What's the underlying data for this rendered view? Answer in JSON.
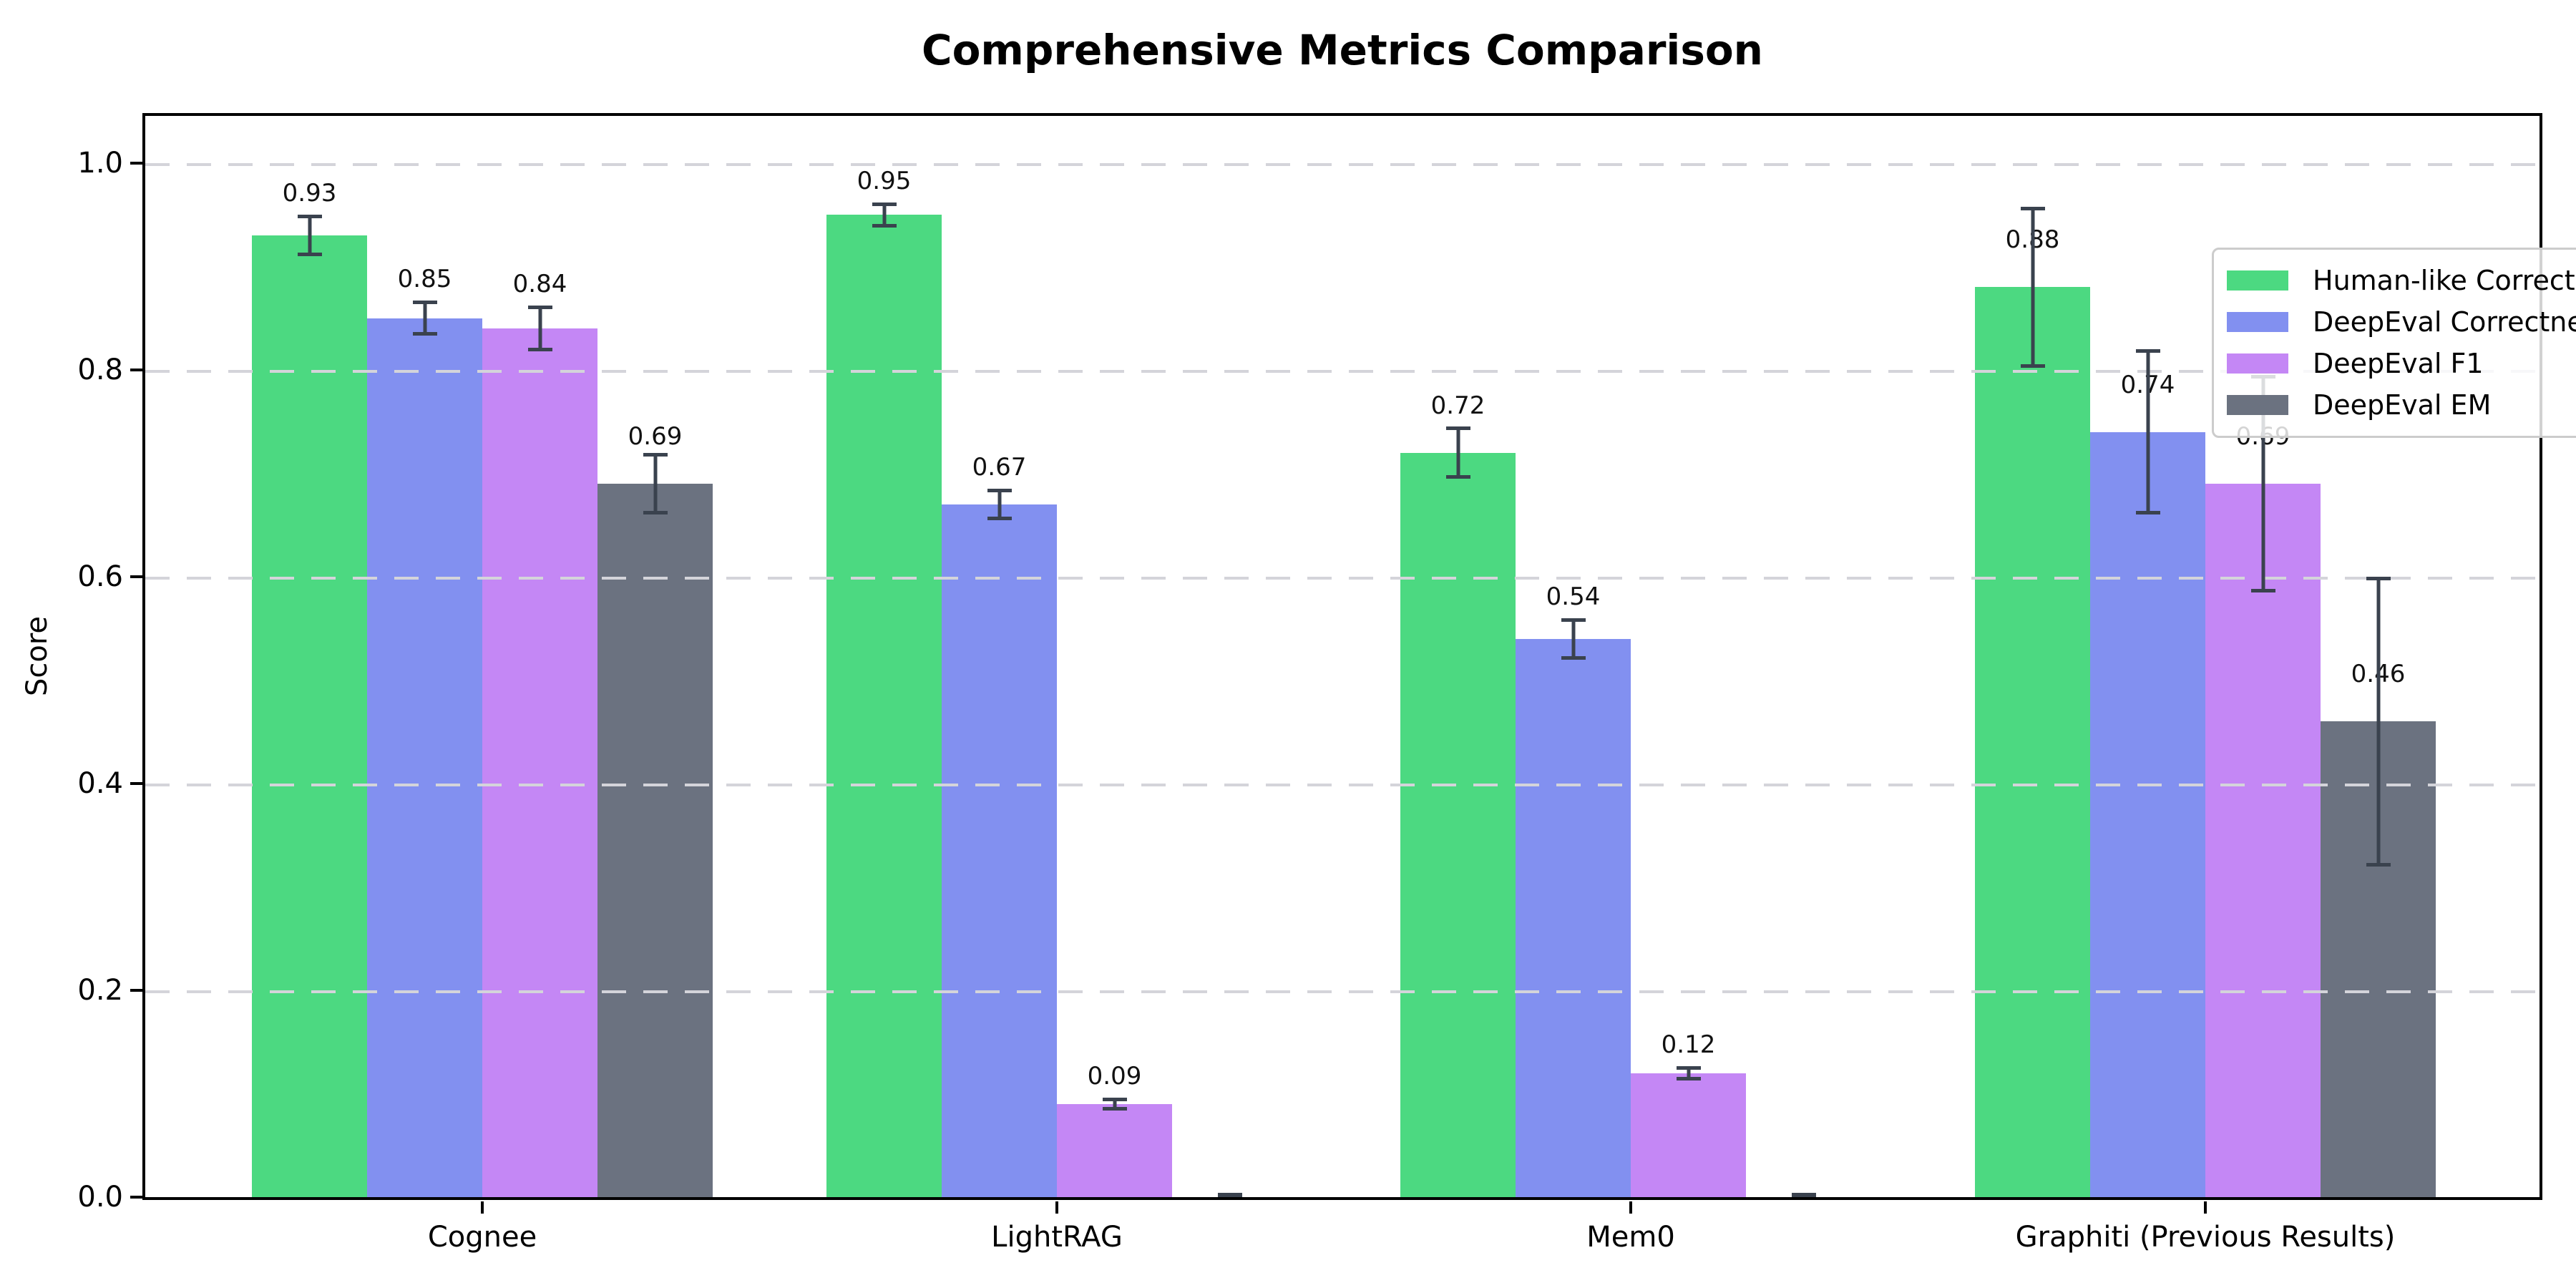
{
  "figure": {
    "background": "#ffffff"
  },
  "chart_data": {
    "type": "bar",
    "title": "Comprehensive Metrics Comparison",
    "ylabel": "Score",
    "xlabel": "",
    "categories": [
      "Cognee",
      "LightRAG",
      "Mem0",
      "Graphiti (Previous Results)"
    ],
    "series": [
      {
        "name": "Human-like Correctness",
        "color": "#4cd981",
        "values": [
          0.93,
          0.95,
          0.72,
          0.88
        ],
        "errors": [
          0.02,
          0.012,
          0.025,
          0.078
        ]
      },
      {
        "name": "DeepEval Correctness",
        "color": "#8290f0",
        "values": [
          0.85,
          0.67,
          0.54,
          0.74
        ],
        "errors": [
          0.017,
          0.015,
          0.02,
          0.08
        ]
      },
      {
        "name": "DeepEval F1",
        "color": "#c487f5",
        "values": [
          0.84,
          0.09,
          0.12,
          0.69
        ],
        "errors": [
          0.022,
          0.006,
          0.007,
          0.105
        ]
      },
      {
        "name": "DeepEval EM",
        "color": "#6b7280",
        "values": [
          0.69,
          0.0,
          0.0,
          0.46
        ],
        "errors": [
          0.03,
          0.004,
          0.004,
          0.14
        ]
      }
    ],
    "yticks": {
      "values": [
        0.0,
        0.2,
        0.4,
        0.6,
        0.8,
        1.0
      ],
      "labels": [
        "0.0",
        "0.2",
        "0.4",
        "0.6",
        "0.8",
        "1.0"
      ]
    },
    "ylim": [
      0,
      1.05
    ],
    "grid": true,
    "legend_position": "upper right",
    "style": {
      "errorbar_color": "#3a424e",
      "grid_color": "#d4d4da",
      "axis_color": "#000000",
      "text_color": "#000000"
    }
  }
}
